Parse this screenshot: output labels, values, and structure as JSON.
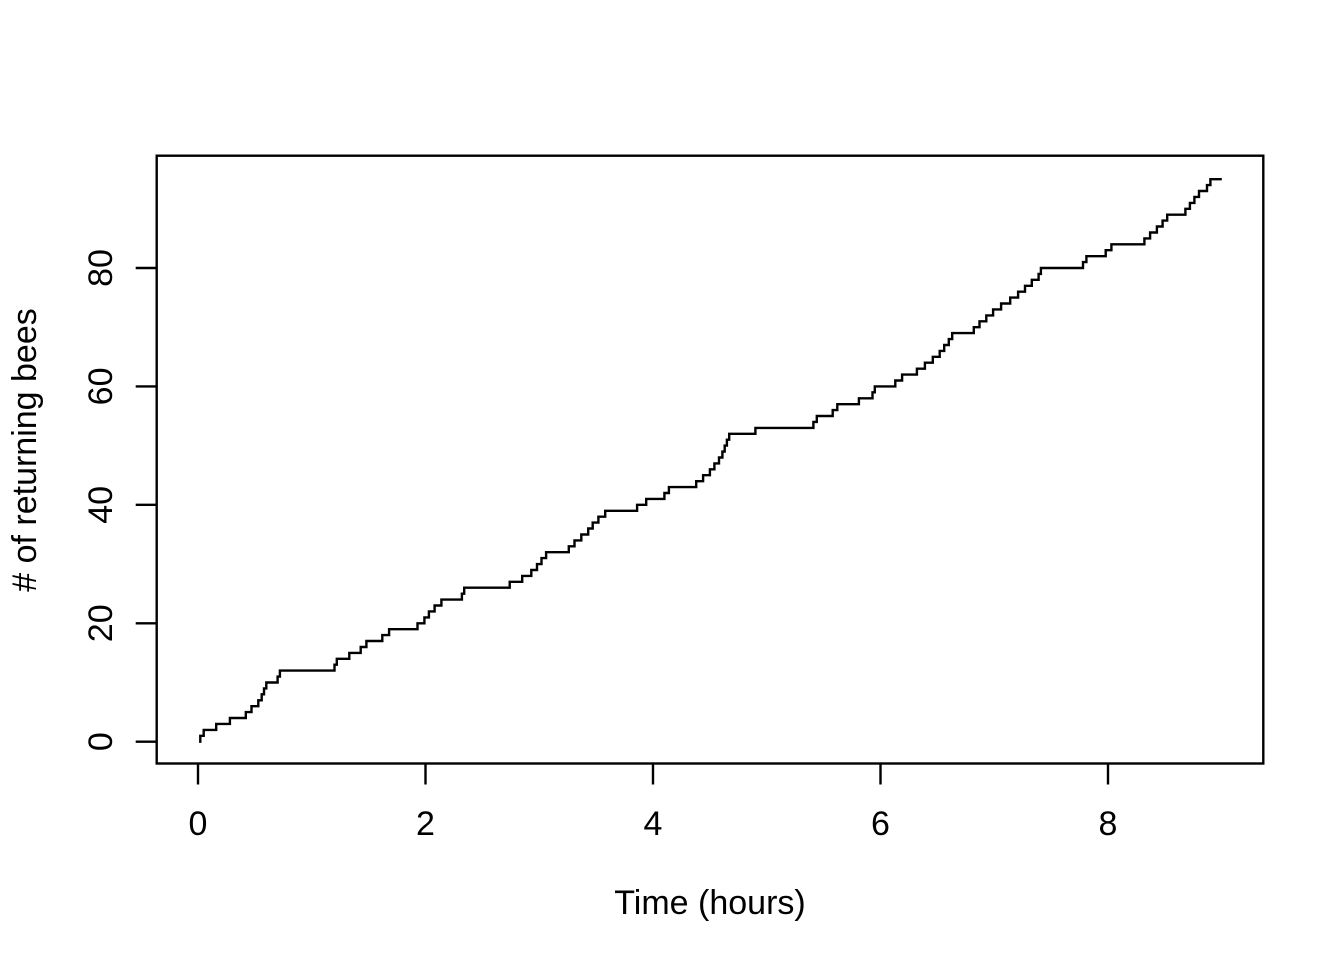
{
  "chart_data": {
    "type": "line",
    "subtype": "step",
    "title": "",
    "xlabel": "Time (hours)",
    "ylabel": "# of returning bees",
    "xlim": [
      0,
      9.0
    ],
    "ylim": [
      0,
      95
    ],
    "x_ticks": [
      0,
      2,
      4,
      6,
      8
    ],
    "x_tick_labels": [
      "0",
      "2",
      "4",
      "6",
      "8"
    ],
    "y_ticks": [
      0,
      20,
      40,
      60,
      80
    ],
    "y_tick_labels": [
      "0",
      "20",
      "40",
      "60",
      "80"
    ],
    "grid": false,
    "legend": null,
    "line_color": "#000000",
    "frame_color": "#000000",
    "background_color": "#FFFFFF",
    "start_point": {
      "t": 0.01,
      "count": 0
    },
    "end_time": 9.0,
    "final_count": 95,
    "arrival_times_hours": [
      0.02,
      0.05,
      0.16,
      0.28,
      0.42,
      0.47,
      0.53,
      0.56,
      0.58,
      0.6,
      0.7,
      0.72,
      1.2,
      1.22,
      1.33,
      1.43,
      1.48,
      1.62,
      1.68,
      1.93,
      1.99,
      2.03,
      2.08,
      2.14,
      2.32,
      2.34,
      2.74,
      2.85,
      2.93,
      2.98,
      3.02,
      3.06,
      3.26,
      3.31,
      3.37,
      3.43,
      3.47,
      3.52,
      3.58,
      3.86,
      3.94,
      4.1,
      4.14,
      4.38,
      4.44,
      4.5,
      4.54,
      4.58,
      4.61,
      4.63,
      4.65,
      4.67,
      4.9,
      5.41,
      5.44,
      5.58,
      5.62,
      5.81,
      5.93,
      5.95,
      6.13,
      6.19,
      6.32,
      6.39,
      6.46,
      6.52,
      6.56,
      6.6,
      6.63,
      6.82,
      6.87,
      6.93,
      6.99,
      7.06,
      7.14,
      7.21,
      7.27,
      7.33,
      7.39,
      7.41,
      7.78,
      7.81,
      7.98,
      8.03,
      8.32,
      8.37,
      8.43,
      8.48,
      8.52,
      8.68,
      8.72,
      8.76,
      8.8,
      8.87,
      8.9
    ],
    "cumulative_counts": [
      1,
      2,
      3,
      4,
      5,
      6,
      7,
      8,
      9,
      10,
      11,
      12,
      13,
      14,
      15,
      16,
      17,
      18,
      19,
      20,
      21,
      22,
      23,
      24,
      25,
      26,
      27,
      28,
      29,
      30,
      31,
      32,
      33,
      34,
      35,
      36,
      37,
      38,
      39,
      40,
      41,
      42,
      43,
      44,
      45,
      46,
      47,
      48,
      49,
      50,
      51,
      52,
      53,
      54,
      55,
      56,
      57,
      58,
      59,
      60,
      61,
      62,
      63,
      64,
      65,
      66,
      67,
      68,
      69,
      70,
      71,
      72,
      73,
      74,
      75,
      76,
      77,
      78,
      79,
      80,
      81,
      82,
      83,
      84,
      85,
      86,
      87,
      88,
      89,
      90,
      91,
      92,
      93,
      94,
      95
    ]
  }
}
